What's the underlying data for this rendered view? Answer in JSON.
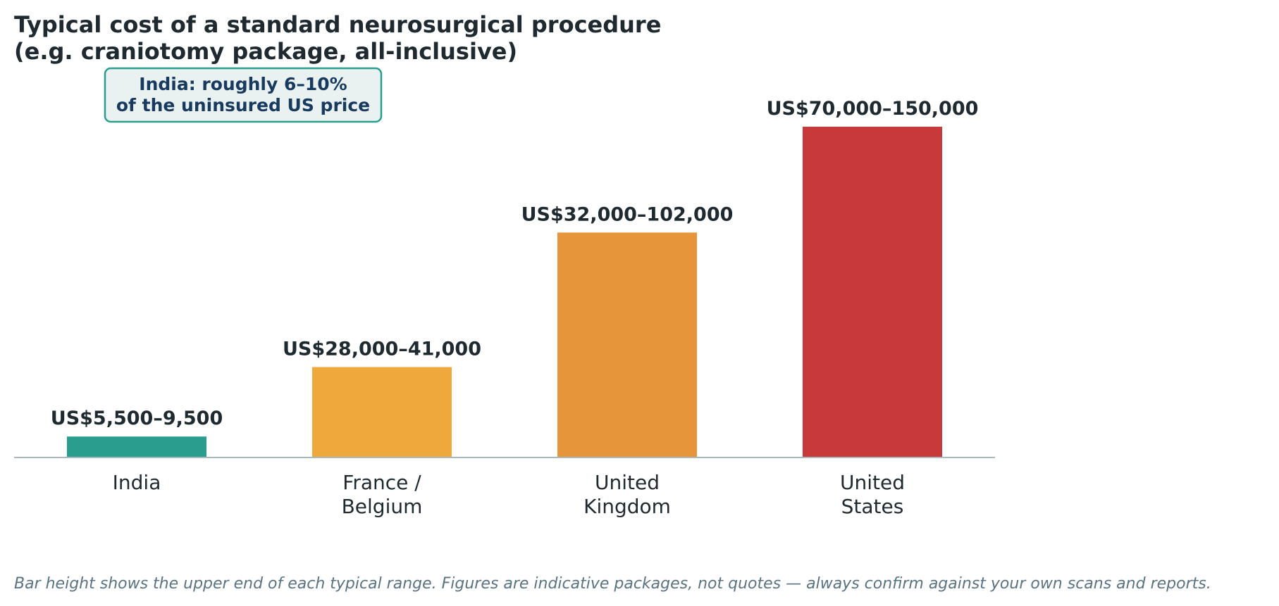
{
  "chart_data": {
    "type": "bar",
    "title_lines": [
      "Typical cost of a standard neurosurgical procedure",
      "(e.g. craniotomy package, all-inclusive)"
    ],
    "categories": [
      [
        "India"
      ],
      [
        "France /",
        "Belgium"
      ],
      [
        "United",
        "Kingdom"
      ],
      [
        "United",
        "States"
      ]
    ],
    "values": [
      9500,
      41000,
      102000,
      150000
    ],
    "value_labels": [
      "US$5,500–9,500",
      "US$28,000–41,000",
      "US$32,000–102,000",
      "US$70,000–150,000"
    ],
    "colors": [
      "#2a9d8f",
      "#efa83c",
      "#e6953b",
      "#c8393c"
    ],
    "ylim": [
      0,
      150000
    ],
    "grid": false,
    "annotation": {
      "lines": [
        "India: roughly 6–10%",
        "of the uninsured US price"
      ],
      "border_color": "#2a9d8f",
      "fill_color": "#eaf2f1",
      "text_color": "#173a5e"
    },
    "footnote": "Bar height shows the upper end of each typical range. Figures are indicative packages, not quotes — always confirm against your own scans and reports."
  }
}
